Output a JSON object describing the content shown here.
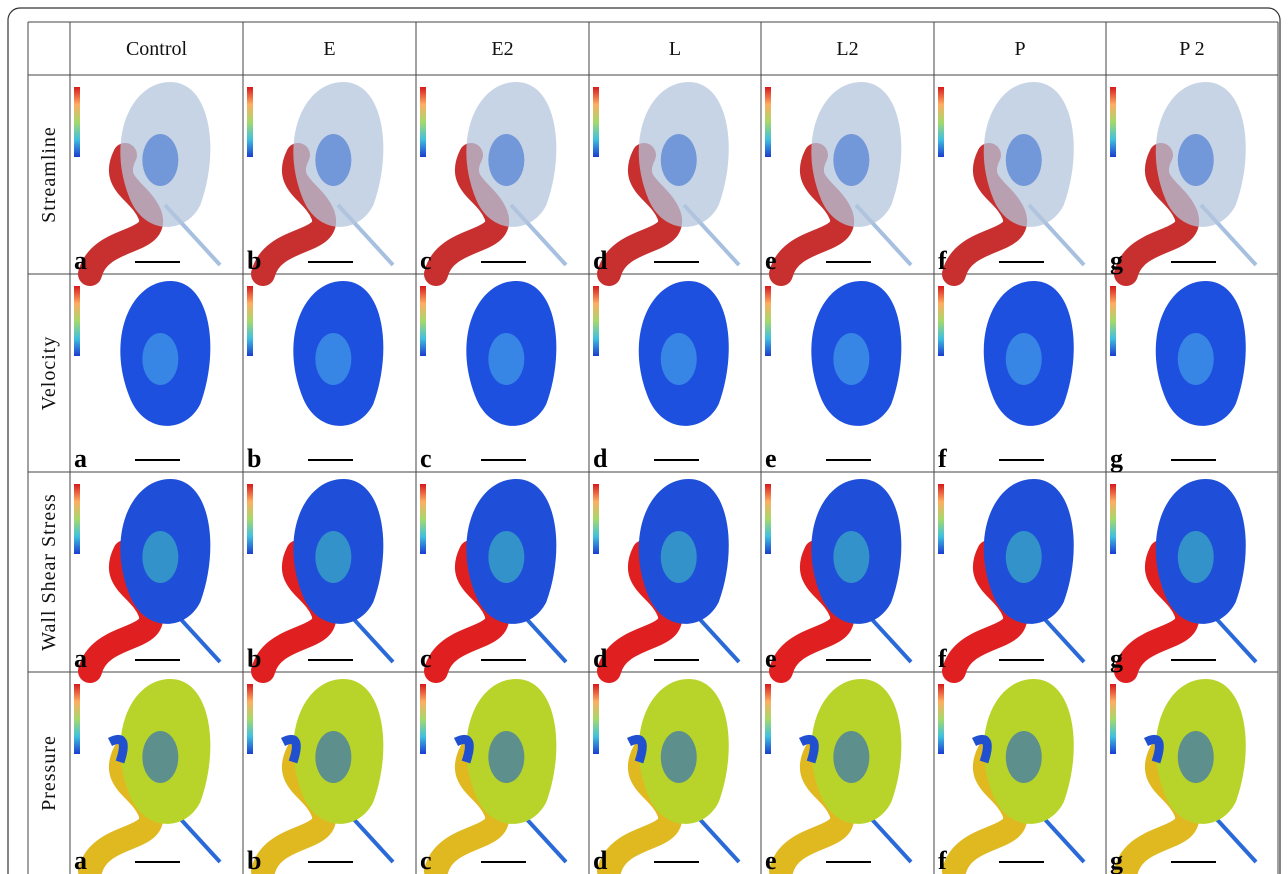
{
  "columns": [
    "Control",
    "E",
    "E2",
    "L",
    "L2",
    "P",
    "P 2"
  ],
  "rows": [
    {
      "label": "Streamline",
      "panels": [
        "a",
        "b",
        "c",
        "d",
        "e",
        "f",
        "g"
      ]
    },
    {
      "label": "Velocity",
      "panels": [
        "a",
        "b",
        "c",
        "d",
        "e",
        "f",
        "g"
      ]
    },
    {
      "label": "Wall Shear Stress",
      "panels": [
        "a",
        "b",
        "c",
        "d",
        "e",
        "f",
        "g"
      ]
    },
    {
      "label": "Pressure",
      "panels": [
        "a",
        "b",
        "c",
        "d",
        "e",
        "f",
        "g"
      ]
    }
  ]
}
